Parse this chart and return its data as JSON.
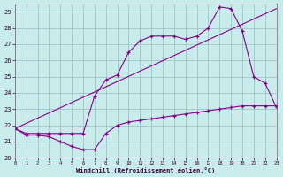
{
  "xlabel": "Windchill (Refroidissement éolien,°C)",
  "bg_color": "#c8ecec",
  "grid_color": "#9bbcbc",
  "line_color": "#880088",
  "xlim": [
    0,
    23
  ],
  "ylim": [
    20,
    29.5
  ],
  "xticks": [
    0,
    1,
    2,
    3,
    4,
    5,
    6,
    7,
    8,
    9,
    10,
    11,
    12,
    13,
    14,
    15,
    16,
    17,
    18,
    19,
    20,
    21,
    22,
    23
  ],
  "yticks": [
    20,
    21,
    22,
    23,
    24,
    25,
    26,
    27,
    28,
    29
  ],
  "line1_x": [
    0,
    1,
    2,
    3,
    4,
    5,
    6,
    7,
    8,
    9,
    10,
    11,
    12,
    13,
    14,
    15,
    16,
    17,
    18,
    19,
    20,
    21,
    22,
    23
  ],
  "line1_y": [
    21.8,
    21.5,
    21.5,
    21.5,
    21.5,
    21.5,
    21.5,
    23.8,
    24.8,
    25.1,
    26.5,
    27.2,
    27.5,
    27.5,
    27.5,
    27.3,
    27.5,
    28.0,
    29.3,
    29.2,
    27.8,
    25.0,
    24.6,
    23.1
  ],
  "line2_x": [
    0,
    1,
    2,
    3,
    4,
    5,
    6,
    7,
    8,
    9,
    10,
    11,
    12,
    13,
    14,
    15,
    16,
    17,
    18,
    19,
    20,
    21,
    22,
    23
  ],
  "line2_y": [
    21.8,
    21.4,
    21.4,
    21.3,
    21.0,
    20.7,
    20.5,
    20.5,
    21.5,
    22.0,
    22.2,
    22.3,
    22.4,
    22.5,
    22.6,
    22.7,
    22.8,
    22.9,
    23.0,
    23.1,
    23.2,
    23.2,
    23.2,
    23.2
  ],
  "line3_x": [
    0,
    23
  ],
  "line3_y": [
    21.8,
    29.2
  ]
}
